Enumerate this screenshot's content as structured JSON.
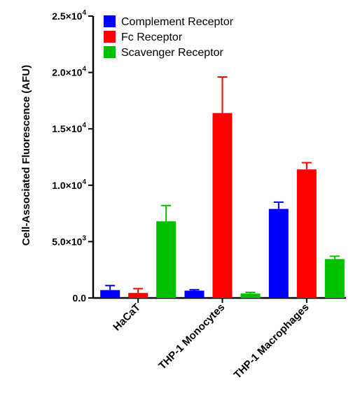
{
  "chart_data": {
    "type": "bar",
    "ylabel": "Cell-Associated Fluorescence (AFU)",
    "xlabel": "",
    "ylim": [
      0,
      25000
    ],
    "y_ticks": [
      {
        "value": 0,
        "mantissa": "0.0",
        "exp": ""
      },
      {
        "value": 5000,
        "mantissa": "5.0×10",
        "exp": "3"
      },
      {
        "value": 10000,
        "mantissa": "1.0×10",
        "exp": "4"
      },
      {
        "value": 15000,
        "mantissa": "1.5×10",
        "exp": "4"
      },
      {
        "value": 20000,
        "mantissa": "2.0×10",
        "exp": "4"
      },
      {
        "value": 25000,
        "mantissa": "2.5×10",
        "exp": "4"
      }
    ],
    "categories": [
      "HaCaT",
      "THP-1 Monocytes",
      "THP-1 Macrophages"
    ],
    "series": [
      {
        "name": "Complement Receptor",
        "color": "#0000ff",
        "values": [
          700,
          650,
          7900
        ],
        "errors": [
          400,
          80,
          600
        ]
      },
      {
        "name": "Fc Receptor",
        "color": "#ff0000",
        "values": [
          450,
          16400,
          11400
        ],
        "errors": [
          380,
          3200,
          600
        ]
      },
      {
        "name": "Scavenger Receptor",
        "color": "#00c000",
        "values": [
          6800,
          400,
          3450
        ],
        "errors": [
          1400,
          100,
          250
        ]
      }
    ],
    "legend_position": "top-left",
    "grid": false
  }
}
